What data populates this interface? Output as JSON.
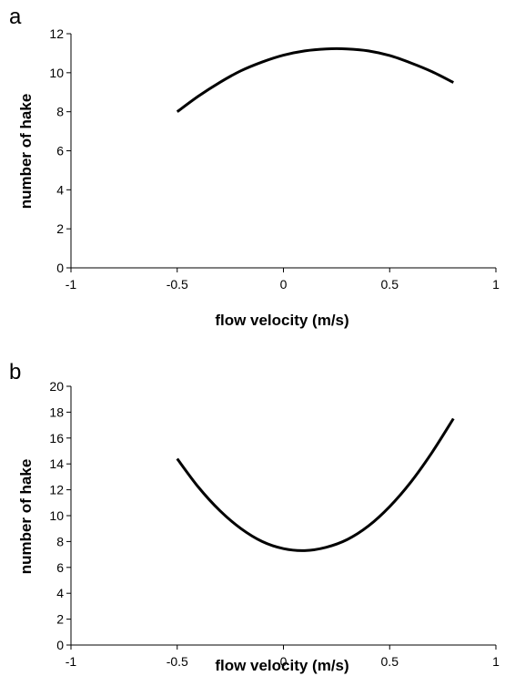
{
  "chart_data": [
    {
      "type": "line",
      "panel_label": "a",
      "xlabel": "flow velocity (m/s)",
      "ylabel": "number of hake",
      "xlim": [
        -1,
        1
      ],
      "ylim": [
        0,
        12
      ],
      "x_ticks": [
        "-1",
        "-0.5",
        "0",
        "0.5",
        "1"
      ],
      "y_ticks": [
        "0",
        "2",
        "4",
        "6",
        "8",
        "10",
        "12"
      ],
      "grid": false,
      "series": [
        {
          "x": [
            -0.5,
            -0.4,
            -0.3,
            -0.2,
            -0.1,
            0.0,
            0.1,
            0.2,
            0.3,
            0.4,
            0.5,
            0.6,
            0.7,
            0.8
          ],
          "y": [
            8.0,
            8.8,
            9.5,
            10.1,
            10.55,
            10.9,
            11.12,
            11.22,
            11.22,
            11.12,
            10.88,
            10.5,
            10.05,
            9.5
          ]
        }
      ]
    },
    {
      "type": "line",
      "panel_label": "b",
      "xlabel": "flow velocity (m/s)",
      "ylabel": "number of hake",
      "xlim": [
        -1,
        1
      ],
      "ylim": [
        0,
        20
      ],
      "x_ticks": [
        "-1",
        "-0.5",
        "0",
        "0.5",
        "1"
      ],
      "y_ticks": [
        "0",
        "2",
        "4",
        "6",
        "8",
        "10",
        "12",
        "14",
        "16",
        "18",
        "20"
      ],
      "grid": false,
      "series": [
        {
          "x": [
            -0.5,
            -0.4,
            -0.3,
            -0.2,
            -0.1,
            0.0,
            0.1,
            0.2,
            0.3,
            0.4,
            0.5,
            0.6,
            0.7,
            0.8
          ],
          "y": [
            14.4,
            12.2,
            10.4,
            9.0,
            8.0,
            7.45,
            7.3,
            7.55,
            8.15,
            9.2,
            10.7,
            12.6,
            14.9,
            17.5
          ]
        }
      ]
    }
  ]
}
